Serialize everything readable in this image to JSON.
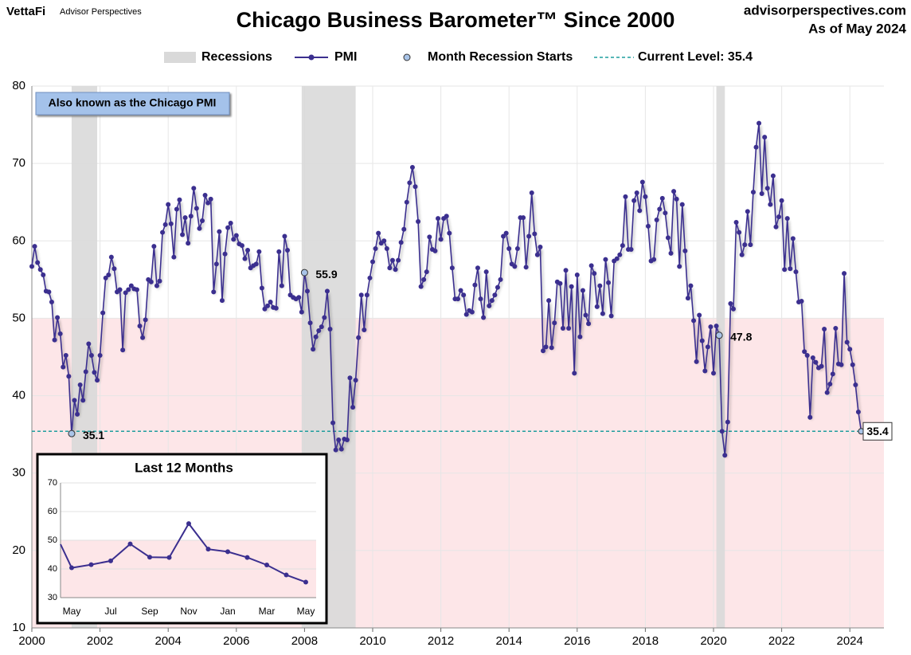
{
  "header": {
    "brand": "VettaFi",
    "brand_sub": "Advisor Perspectives",
    "source": "advisorperspectives.com",
    "as_of": "As of May 2024"
  },
  "chart_data": {
    "type": "line",
    "title": "Chicago Business Barometer™ Since 2000",
    "note": "Also known as the Chicago PMI",
    "x": [
      2000,
      2000.083,
      2000.167,
      2000.25,
      2000.333,
      2000.417,
      2000.5,
      2000.583,
      2000.667,
      2000.75,
      2000.833,
      2000.917,
      2001,
      2001.083,
      2001.167,
      2001.25,
      2001.333,
      2001.417,
      2001.5,
      2001.583,
      2001.667,
      2001.75,
      2001.833,
      2001.917,
      2002,
      2002.083,
      2002.167,
      2002.25,
      2002.333,
      2002.417,
      2002.5,
      2002.583,
      2002.667,
      2002.75,
      2002.833,
      2002.917,
      2003,
      2003.083,
      2003.167,
      2003.25,
      2003.333,
      2003.417,
      2003.5,
      2003.583,
      2003.667,
      2003.75,
      2003.833,
      2003.917,
      2004,
      2004.083,
      2004.167,
      2004.25,
      2004.333,
      2004.417,
      2004.5,
      2004.583,
      2004.667,
      2004.75,
      2004.833,
      2004.917,
      2005,
      2005.083,
      2005.167,
      2005.25,
      2005.333,
      2005.417,
      2005.5,
      2005.583,
      2005.667,
      2005.75,
      2005.833,
      2005.917,
      2006,
      2006.083,
      2006.167,
      2006.25,
      2006.333,
      2006.417,
      2006.5,
      2006.583,
      2006.667,
      2006.75,
      2006.833,
      2006.917,
      2007,
      2007.083,
      2007.167,
      2007.25,
      2007.333,
      2007.417,
      2007.5,
      2007.583,
      2007.667,
      2007.75,
      2007.833,
      2007.917,
      2008,
      2008.083,
      2008.167,
      2008.25,
      2008.333,
      2008.417,
      2008.5,
      2008.583,
      2008.667,
      2008.75,
      2008.833,
      2008.917,
      2009,
      2009.083,
      2009.167,
      2009.25,
      2009.333,
      2009.417,
      2009.5,
      2009.583,
      2009.667,
      2009.75,
      2009.833,
      2009.917,
      2010,
      2010.083,
      2010.167,
      2010.25,
      2010.333,
      2010.417,
      2010.5,
      2010.583,
      2010.667,
      2010.75,
      2010.833,
      2010.917,
      2011,
      2011.083,
      2011.167,
      2011.25,
      2011.333,
      2011.417,
      2011.5,
      2011.583,
      2011.667,
      2011.75,
      2011.833,
      2011.917,
      2012,
      2012.083,
      2012.167,
      2012.25,
      2012.333,
      2012.417,
      2012.5,
      2012.583,
      2012.667,
      2012.75,
      2012.833,
      2012.917,
      2013,
      2013.083,
      2013.167,
      2013.25,
      2013.333,
      2013.417,
      2013.5,
      2013.583,
      2013.667,
      2013.75,
      2013.833,
      2013.917,
      2014,
      2014.083,
      2014.167,
      2014.25,
      2014.333,
      2014.417,
      2014.5,
      2014.583,
      2014.667,
      2014.75,
      2014.833,
      2014.917,
      2015,
      2015.083,
      2015.167,
      2015.25,
      2015.333,
      2015.417,
      2015.5,
      2015.583,
      2015.667,
      2015.75,
      2015.833,
      2015.917,
      2016,
      2016.083,
      2016.167,
      2016.25,
      2016.333,
      2016.417,
      2016.5,
      2016.583,
      2016.667,
      2016.75,
      2016.833,
      2016.917,
      2017,
      2017.083,
      2017.167,
      2017.25,
      2017.333,
      2017.417,
      2017.5,
      2017.583,
      2017.667,
      2017.75,
      2017.833,
      2017.917,
      2018,
      2018.083,
      2018.167,
      2018.25,
      2018.333,
      2018.417,
      2018.5,
      2018.583,
      2018.667,
      2018.75,
      2018.833,
      2018.917,
      2019,
      2019.083,
      2019.167,
      2019.25,
      2019.333,
      2019.417,
      2019.5,
      2019.583,
      2019.667,
      2019.75,
      2019.833,
      2019.917,
      2020,
      2020.083,
      2020.167,
      2020.25,
      2020.333,
      2020.417,
      2020.5,
      2020.583,
      2020.667,
      2020.75,
      2020.833,
      2020.917,
      2021,
      2021.083,
      2021.167,
      2021.25,
      2021.333,
      2021.417,
      2021.5,
      2021.583,
      2021.667,
      2021.75,
      2021.833,
      2021.917,
      2022,
      2022.083,
      2022.167,
      2022.25,
      2022.333,
      2022.417,
      2022.5,
      2022.583,
      2022.667,
      2022.75,
      2022.833,
      2022.917,
      2023,
      2023.083,
      2023.167,
      2023.25,
      2023.333,
      2023.417,
      2023.5,
      2023.583,
      2023.667,
      2023.75,
      2023.833,
      2023.917,
      2024,
      2024.083,
      2024.167,
      2024.25,
      2024.333
    ],
    "xlim": [
      2000,
      2025
    ],
    "xticks": [
      2000,
      2002,
      2004,
      2006,
      2008,
      2010,
      2012,
      2014,
      2016,
      2018,
      2020,
      2022,
      2024
    ],
    "ylim": [
      10,
      80
    ],
    "yticks": [
      10,
      20,
      30,
      40,
      50,
      60,
      70,
      80
    ],
    "grid": true,
    "series": [
      {
        "name": "PMI",
        "color": "#3b2f8f",
        "values": [
          56.7,
          59.3,
          57.2,
          56.3,
          55.6,
          53.5,
          53.4,
          52.1,
          47.2,
          50.1,
          48.0,
          43.7,
          45.2,
          42.5,
          35.1,
          39.4,
          37.6,
          41.4,
          39.4,
          43.1,
          46.7,
          45.2,
          43.0,
          42.0,
          45.2,
          50.7,
          55.2,
          55.6,
          57.9,
          56.4,
          53.4,
          53.7,
          45.9,
          53.3,
          53.7,
          54.2,
          53.8,
          53.7,
          49.0,
          47.5,
          49.8,
          55.0,
          54.7,
          59.3,
          54.2,
          54.8,
          61.1,
          62.1,
          64.7,
          62.2,
          57.9,
          64.1,
          65.3,
          60.8,
          63.0,
          59.7,
          63.2,
          66.8,
          64.2,
          61.6,
          62.6,
          65.9,
          64.9,
          65.4,
          53.4,
          57.0,
          61.2,
          52.3,
          58.3,
          61.7,
          62.3,
          60.2,
          60.7,
          59.6,
          59.4,
          57.7,
          58.8,
          56.5,
          56.8,
          57.0,
          58.6,
          53.9,
          51.2,
          51.6,
          52.1,
          51.4,
          51.3,
          58.6,
          54.2,
          60.6,
          58.8,
          53.0,
          52.7,
          52.5,
          52.7,
          50.8,
          55.9,
          53.5,
          49.4,
          46.0,
          47.6,
          48.4,
          48.9,
          50.1,
          53.5,
          48.6,
          36.5,
          33.0,
          34.3,
          33.1,
          34.4,
          34.3,
          42.3,
          38.5,
          42.0,
          47.5,
          53.0,
          48.5,
          53.0,
          55.2,
          57.3,
          59.0,
          61.0,
          59.7,
          60.0,
          59.0,
          56.5,
          57.5,
          56.3,
          57.5,
          59.8,
          61.5,
          65.0,
          67.5,
          69.5,
          67.0,
          62.5,
          54.1,
          55.0,
          56.0,
          60.5,
          58.9,
          58.7,
          62.9,
          60.2,
          62.9,
          63.2,
          61.0,
          56.5,
          52.5,
          52.5,
          53.6,
          53.0,
          50.5,
          51.0,
          50.8,
          54.3,
          56.5,
          52.5,
          50.1,
          56.0,
          51.6,
          52.3,
          53.0,
          54.0,
          55.0,
          60.6,
          61.0,
          59.0,
          57.0,
          56.7,
          59.0,
          63.0,
          63.0,
          56.6,
          60.6,
          66.2,
          60.9,
          58.2,
          59.2,
          45.8,
          46.3,
          52.3,
          46.2,
          49.4,
          54.7,
          54.5,
          48.7,
          56.2,
          48.7,
          54.1,
          42.9,
          55.6,
          47.6,
          53.6,
          50.4,
          49.3,
          56.8,
          55.8,
          51.5,
          54.2,
          50.6,
          57.6,
          54.6,
          50.3,
          57.4,
          57.7,
          58.2,
          59.4,
          65.7,
          58.9,
          58.9,
          65.2,
          66.2,
          63.9,
          67.6,
          65.7,
          61.9,
          57.4,
          57.6,
          62.7,
          64.1,
          65.5,
          63.6,
          60.4,
          58.4,
          66.4,
          65.4,
          56.7,
          64.7,
          58.7,
          52.6,
          54.2,
          49.7,
          44.4,
          50.4,
          47.1,
          43.2,
          46.3,
          48.9,
          42.9,
          49.0,
          47.8,
          35.4,
          32.3,
          36.6,
          51.9,
          51.2,
          62.4,
          61.1,
          58.2,
          59.5,
          63.8,
          59.5,
          66.3,
          72.1,
          75.2,
          66.1,
          73.4,
          66.8,
          64.7,
          68.4,
          61.8,
          63.1,
          65.2,
          56.3,
          62.9,
          56.4,
          60.3,
          56.0,
          52.1,
          52.2,
          45.7,
          45.2,
          37.2,
          44.9,
          44.3,
          43.6,
          43.8,
          48.6,
          40.4,
          41.5,
          42.8,
          48.7,
          44.1,
          44.0,
          55.8,
          46.9,
          46.0,
          44.0,
          41.4,
          37.9,
          35.4
        ]
      }
    ],
    "recessions": {
      "name": "Recessions",
      "color": "#d9d9d9",
      "spans": [
        [
          2001.167,
          2001.917
        ],
        [
          2007.917,
          2009.5
        ],
        [
          2020.083,
          2020.333
        ]
      ]
    },
    "recession_starts": {
      "name": "Month Recession Starts",
      "color": "#a9c4e8",
      "x": [
        2001.167,
        2008,
        2020.167
      ],
      "values": [
        35.1,
        55.9,
        47.8
      ]
    },
    "current_level": {
      "name": "Current Level: 35.4",
      "value": 35.4,
      "color": "#1f9e9e"
    },
    "contraction_below": 50,
    "contraction_color": "#fde6e8",
    "inset": {
      "title": "Last 12 Months",
      "xtick_labels": [
        "May",
        "Jul",
        "Sep",
        "Nov",
        "Jan",
        "Mar",
        "May"
      ],
      "ylim": [
        30,
        70
      ],
      "yticks": [
        30,
        40,
        50,
        60,
        70
      ]
    }
  }
}
